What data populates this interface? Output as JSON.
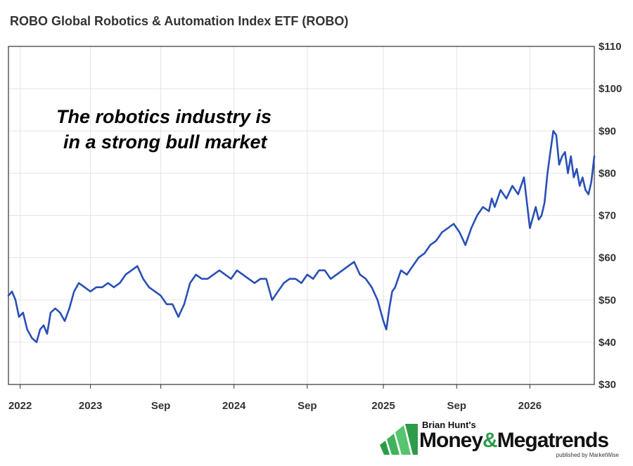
{
  "chart_data": {
    "type": "line",
    "title": "ROBO Global Robotics & Automation Index ETF (ROBO)",
    "ylim": [
      30,
      110
    ],
    "y_ticks": [
      "$110",
      "$100",
      "$90",
      "$80",
      "$70",
      "$60",
      "$50",
      "$40",
      "$30"
    ],
    "y_tick_values": [
      110,
      100,
      90,
      80,
      70,
      60,
      50,
      40,
      30
    ],
    "x_ticks": [
      "2022",
      "2023",
      "Sep",
      "2024",
      "Sep",
      "2025",
      "Sep",
      "2026"
    ],
    "x_tick_positions": [
      0.02,
      0.14,
      0.26,
      0.385,
      0.51,
      0.64,
      0.765,
      0.89
    ],
    "grid": true,
    "line_color": "#2a4fb5",
    "series": [
      {
        "x": [
          0,
          0.006,
          0.012,
          0.018,
          0.025,
          0.032,
          0.04,
          0.048,
          0.054,
          0.06,
          0.066,
          0.072,
          0.08,
          0.088,
          0.096,
          0.104,
          0.112,
          0.12,
          0.13,
          0.14,
          0.15,
          0.16,
          0.17,
          0.18,
          0.19,
          0.2,
          0.21,
          0.22,
          0.23,
          0.24,
          0.25,
          0.26,
          0.27,
          0.28,
          0.29,
          0.3,
          0.31,
          0.32,
          0.33,
          0.34,
          0.35,
          0.36,
          0.37,
          0.38,
          0.39,
          0.4,
          0.41,
          0.42,
          0.43,
          0.44,
          0.45,
          0.46,
          0.47,
          0.48,
          0.49,
          0.5,
          0.51,
          0.52,
          0.53,
          0.54,
          0.55,
          0.56,
          0.57,
          0.58,
          0.59,
          0.6,
          0.61,
          0.62,
          0.63,
          0.64,
          0.645,
          0.65,
          0.655,
          0.66,
          0.665,
          0.67,
          0.68,
          0.69,
          0.7,
          0.71,
          0.72,
          0.73,
          0.74,
          0.75,
          0.76,
          0.77,
          0.78,
          0.79,
          0.8,
          0.81,
          0.82,
          0.825,
          0.83,
          0.84,
          0.85,
          0.86,
          0.87,
          0.88,
          0.89,
          0.9,
          0.905,
          0.91,
          0.915,
          0.92,
          0.925,
          0.93,
          0.935,
          0.94,
          0.945,
          0.95,
          0.955,
          0.96,
          0.965,
          0.97,
          0.975,
          0.98,
          0.985,
          0.99,
          0.995,
          1.0
        ],
        "values": [
          51,
          52,
          50,
          46,
          47,
          43,
          41,
          40,
          43,
          44,
          42,
          47,
          48,
          47,
          45,
          48,
          52,
          54,
          53,
          52,
          53,
          53,
          54,
          53,
          54,
          56,
          57,
          58,
          55,
          53,
          52,
          51,
          49,
          49,
          46,
          49,
          54,
          56,
          55,
          55,
          56,
          57,
          56,
          55,
          57,
          56,
          55,
          54,
          55,
          55,
          50,
          52,
          54,
          55,
          55,
          54,
          56,
          55,
          57,
          57,
          55,
          56,
          57,
          58,
          59,
          56,
          55,
          53,
          50,
          45,
          43,
          48,
          52,
          53,
          55,
          57,
          56,
          58,
          60,
          61,
          63,
          64,
          66,
          67,
          68,
          66,
          63,
          67,
          70,
          72,
          71,
          74,
          72,
          76,
          74,
          77,
          75,
          79,
          67,
          72,
          69,
          70,
          73,
          80,
          85,
          90,
          89,
          82,
          84,
          85,
          80,
          84,
          79,
          81,
          77,
          79,
          76,
          75,
          78,
          84
        ]
      }
    ]
  },
  "annotation": {
    "line1": "The robotics industry is",
    "line2": "in a strong bull market"
  },
  "logo": {
    "top": "Brian Hunt's",
    "main_part1": "Money",
    "main_amp": "&",
    "main_part2": "Megatrends",
    "sub": "published by MarketWise"
  }
}
